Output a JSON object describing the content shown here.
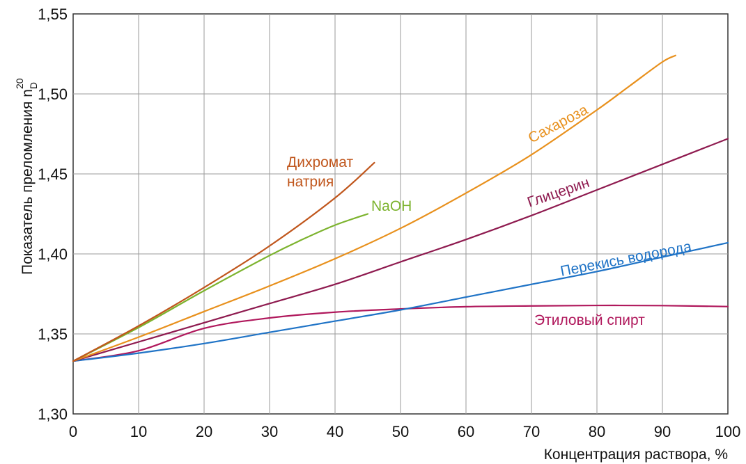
{
  "chart_data": {
    "type": "line",
    "xlabel": "Концентрация раствора, %",
    "ylabel": "Показатель преломления n",
    "ylabel_sub": "D",
    "ylabel_sup": "20",
    "xlim": [
      0,
      100
    ],
    "ylim": [
      1.3,
      1.55
    ],
    "grid": true,
    "x_ticks": [
      "0",
      "10",
      "20",
      "30",
      "40",
      "50",
      "60",
      "70",
      "80",
      "90",
      "100"
    ],
    "y_ticks": [
      "1,30",
      "1,35",
      "1,40",
      "1,45",
      "1,50",
      "1,55"
    ],
    "series": [
      {
        "name": "Этиловый спирт",
        "color": "#b0185c",
        "x": [
          0,
          10,
          20,
          30,
          40,
          50,
          60,
          70,
          80,
          90,
          100
        ],
        "y": [
          1.333,
          1.3395,
          1.3535,
          1.36,
          1.3636,
          1.3656,
          1.367,
          1.3675,
          1.3678,
          1.3677,
          1.3671
        ]
      },
      {
        "name": "Перекись водорода",
        "color": "#1f73c6",
        "x": [
          0,
          10,
          20,
          30,
          40,
          50,
          60,
          70,
          80,
          90,
          100
        ],
        "y": [
          1.333,
          1.338,
          1.344,
          1.351,
          1.358,
          1.365,
          1.373,
          1.381,
          1.389,
          1.398,
          1.407
        ]
      },
      {
        "name": "Глицерин",
        "color": "#8e1a4f",
        "x": [
          0,
          10,
          20,
          30,
          40,
          50,
          60,
          70,
          80,
          90,
          100
        ],
        "y": [
          1.333,
          1.345,
          1.357,
          1.369,
          1.381,
          1.395,
          1.409,
          1.424,
          1.44,
          1.456,
          1.472
        ]
      },
      {
        "name": "Сахароза",
        "color": "#e8901c",
        "x": [
          0,
          10,
          20,
          30,
          40,
          50,
          60,
          70,
          80,
          85,
          90,
          92
        ],
        "y": [
          1.333,
          1.348,
          1.364,
          1.38,
          1.397,
          1.416,
          1.438,
          1.462,
          1.49,
          1.505,
          1.52,
          1.524
        ]
      },
      {
        "name": "NaOH",
        "color": "#7cb32e",
        "x": [
          0,
          10,
          20,
          30,
          35,
          40,
          45
        ],
        "y": [
          1.333,
          1.354,
          1.377,
          1.399,
          1.409,
          1.418,
          1.425
        ]
      },
      {
        "name": "Дихромат натрия",
        "color": "#c0561c",
        "x": [
          0,
          10,
          20,
          30,
          40,
          46
        ],
        "y": [
          1.333,
          1.355,
          1.379,
          1.405,
          1.435,
          1.457
        ]
      }
    ],
    "annotations": [
      {
        "text": "Дихромат",
        "series": "Дихромат натрия"
      },
      {
        "text": "натрия",
        "series": "Дихромат натрия"
      },
      {
        "text": "NaOH",
        "series": "NaOH"
      },
      {
        "text": "Сахароза",
        "series": "Сахароза"
      },
      {
        "text": "Глицерин",
        "series": "Глицерин"
      },
      {
        "text": "Перекись водорода",
        "series": "Перекись водорода"
      },
      {
        "text": "Этиловый спирт",
        "series": "Этиловый спирт"
      }
    ]
  }
}
